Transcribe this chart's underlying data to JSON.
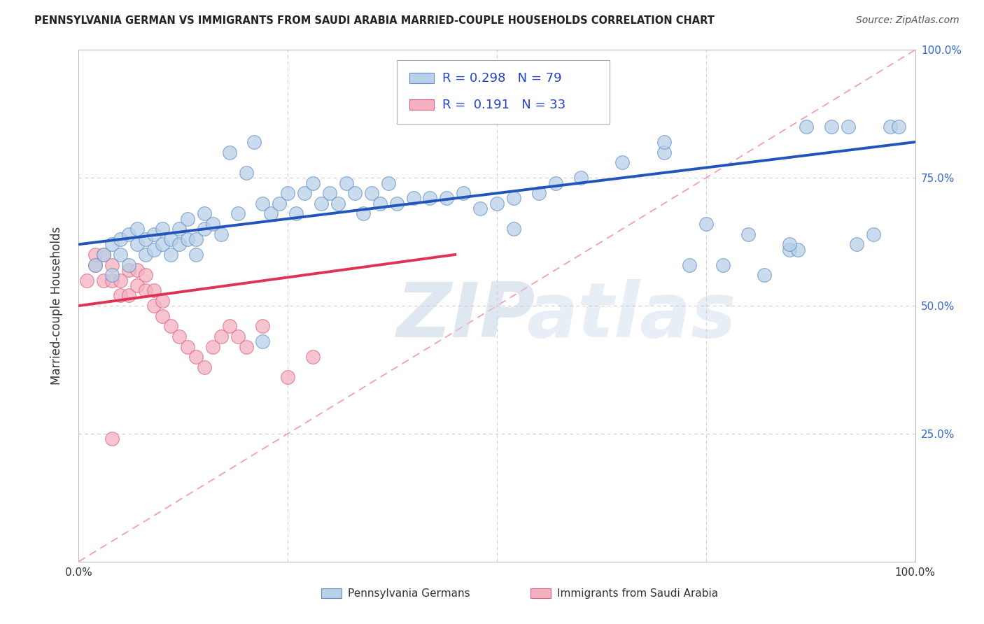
{
  "title": "PENNSYLVANIA GERMAN VS IMMIGRANTS FROM SAUDI ARABIA MARRIED-COUPLE HOUSEHOLDS CORRELATION CHART",
  "source": "Source: ZipAtlas.com",
  "ylabel": "Married-couple Households",
  "xlim": [
    0,
    1
  ],
  "ylim": [
    0,
    1
  ],
  "blue_R": 0.298,
  "blue_N": 79,
  "pink_R": 0.191,
  "pink_N": 33,
  "blue_color": "#b8d0e8",
  "pink_color": "#f4b0c0",
  "blue_edge_color": "#6090c8",
  "pink_edge_color": "#e06080",
  "blue_line_color": "#2255bb",
  "pink_line_color": "#dd3355",
  "ref_line_color": "#f0a0b0",
  "grid_color": "#cccccc",
  "right_tick_color": "#3366cc",
  "legend_label_blue": "Pennsylvania Germans",
  "legend_label_pink": "Immigrants from Saudi Arabia",
  "blue_x": [
    0.02,
    0.03,
    0.04,
    0.04,
    0.05,
    0.05,
    0.06,
    0.06,
    0.07,
    0.07,
    0.08,
    0.08,
    0.09,
    0.09,
    0.1,
    0.1,
    0.11,
    0.11,
    0.12,
    0.12,
    0.13,
    0.13,
    0.14,
    0.14,
    0.15,
    0.15,
    0.16,
    0.17,
    0.18,
    0.19,
    0.2,
    0.21,
    0.22,
    0.23,
    0.24,
    0.25,
    0.26,
    0.27,
    0.28,
    0.29,
    0.3,
    0.31,
    0.32,
    0.33,
    0.34,
    0.35,
    0.36,
    0.37,
    0.38,
    0.4,
    0.42,
    0.44,
    0.46,
    0.48,
    0.5,
    0.52,
    0.55,
    0.57,
    0.6,
    0.65,
    0.7,
    0.73,
    0.75,
    0.77,
    0.8,
    0.82,
    0.85,
    0.86,
    0.87,
    0.9,
    0.92,
    0.93,
    0.95,
    0.97,
    0.98,
    0.52,
    0.7,
    0.85,
    0.22
  ],
  "blue_y": [
    0.58,
    0.6,
    0.56,
    0.62,
    0.6,
    0.63,
    0.58,
    0.64,
    0.62,
    0.65,
    0.6,
    0.63,
    0.61,
    0.64,
    0.62,
    0.65,
    0.63,
    0.6,
    0.62,
    0.65,
    0.63,
    0.67,
    0.6,
    0.63,
    0.65,
    0.68,
    0.66,
    0.64,
    0.8,
    0.68,
    0.76,
    0.82,
    0.7,
    0.68,
    0.7,
    0.72,
    0.68,
    0.72,
    0.74,
    0.7,
    0.72,
    0.7,
    0.74,
    0.72,
    0.68,
    0.72,
    0.7,
    0.74,
    0.7,
    0.71,
    0.71,
    0.71,
    0.72,
    0.69,
    0.7,
    0.71,
    0.72,
    0.74,
    0.75,
    0.78,
    0.8,
    0.58,
    0.66,
    0.58,
    0.64,
    0.56,
    0.61,
    0.61,
    0.85,
    0.85,
    0.85,
    0.62,
    0.64,
    0.85,
    0.85,
    0.65,
    0.82,
    0.62,
    0.43
  ],
  "pink_x": [
    0.01,
    0.02,
    0.02,
    0.03,
    0.03,
    0.04,
    0.04,
    0.05,
    0.05,
    0.06,
    0.06,
    0.07,
    0.07,
    0.08,
    0.08,
    0.09,
    0.09,
    0.1,
    0.1,
    0.11,
    0.12,
    0.13,
    0.14,
    0.15,
    0.16,
    0.17,
    0.18,
    0.19,
    0.2,
    0.22,
    0.25,
    0.28,
    0.04
  ],
  "pink_y": [
    0.55,
    0.58,
    0.6,
    0.55,
    0.6,
    0.55,
    0.58,
    0.52,
    0.55,
    0.57,
    0.52,
    0.54,
    0.57,
    0.53,
    0.56,
    0.5,
    0.53,
    0.48,
    0.51,
    0.46,
    0.44,
    0.42,
    0.4,
    0.38,
    0.42,
    0.44,
    0.46,
    0.44,
    0.42,
    0.46,
    0.36,
    0.4,
    0.24
  ],
  "blue_line_x0": 0.0,
  "blue_line_y0": 0.62,
  "blue_line_x1": 1.0,
  "blue_line_y1": 0.82,
  "pink_line_x0": 0.0,
  "pink_line_y0": 0.5,
  "pink_line_x1": 0.45,
  "pink_line_y1": 0.6
}
